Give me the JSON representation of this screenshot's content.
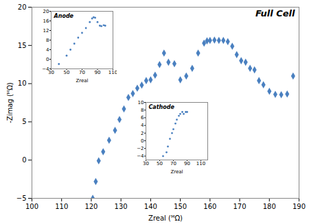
{
  "chart_data": [
    {
      "type": "scatter",
      "title": "Full Cell",
      "xlabel": "Zreal (ᴹΩ)",
      "ylabel": "-Zimag (ᴹΩ)",
      "x": [
        120.5,
        121.5,
        122.5,
        124.0,
        126.0,
        128.0,
        129.5,
        131.0,
        132.5,
        134.0,
        135.5,
        137.0,
        138.5,
        140.0,
        141.5,
        143.0,
        144.5,
        146.0,
        148.0,
        150.0,
        152.0,
        154.0,
        156.0,
        158.0,
        159.0,
        160.0,
        161.5,
        163.0,
        164.5,
        166.0,
        167.5,
        169.0,
        170.5,
        172.0,
        173.5,
        175.0,
        176.5,
        178.0,
        180.0,
        182.0,
        184.0,
        186.0,
        188.0
      ],
      "values": [
        -5.0,
        -2.8,
        -0.1,
        1.1,
        2.6,
        3.9,
        5.3,
        6.7,
        8.2,
        8.7,
        9.4,
        9.8,
        10.4,
        10.5,
        11.1,
        12.5,
        14.0,
        12.8,
        12.6,
        10.5,
        11.0,
        12.0,
        14.0,
        15.3,
        15.6,
        15.65,
        15.7,
        15.65,
        15.65,
        15.5,
        14.9,
        13.8,
        13.0,
        12.8,
        12.0,
        11.8,
        10.4,
        9.85,
        9.0,
        8.6,
        8.55,
        8.65,
        11.0
      ],
      "color": "#4a80c0",
      "marker": "diamond",
      "xlim": [
        100,
        190
      ],
      "ylim": [
        -5,
        20
      ],
      "xticks": [
        100,
        110,
        120,
        130,
        140,
        150,
        160,
        170,
        180,
        190
      ],
      "yticks": [
        -5,
        0,
        5,
        10,
        15,
        20
      ]
    },
    {
      "type": "scatter",
      "title": "Anode",
      "xlabel": "Zreal",
      "x": [
        40,
        50,
        55,
        60,
        65,
        70,
        75,
        80,
        83,
        85,
        87,
        90,
        93,
        95,
        98,
        100
      ],
      "values": [
        -2,
        1.5,
        4,
        6.5,
        9,
        11,
        13,
        15.5,
        17,
        17.5,
        17.3,
        15.5,
        14.0,
        13.8,
        14.2,
        14.0
      ],
      "color": "#4a80c0",
      "marker": "point",
      "xlim": [
        30,
        110
      ],
      "ylim": [
        -4,
        20
      ],
      "xticks": [
        30,
        50,
        70,
        90,
        110
      ],
      "yticks": [
        -4,
        0,
        4,
        8,
        12,
        16,
        20
      ]
    },
    {
      "type": "scatter",
      "title": "Cathode",
      "xlabel": "Zreal",
      "x": [
        55,
        60,
        62,
        65,
        68,
        70,
        73,
        75,
        78,
        80,
        83,
        85,
        88,
        90
      ],
      "values": [
        -4,
        -3.0,
        -1.5,
        0.5,
        2.0,
        3.0,
        4.5,
        5.5,
        6.5,
        7.0,
        7.5,
        7.0,
        7.5,
        7.5
      ],
      "color": "#4a80c0",
      "marker": "point",
      "xlim": [
        30,
        120
      ],
      "ylim": [
        -5,
        10
      ],
      "xticks": [
        30,
        50,
        70,
        90,
        110
      ],
      "yticks": [
        -4,
        -2,
        0,
        2,
        4,
        6,
        8,
        10
      ]
    }
  ]
}
